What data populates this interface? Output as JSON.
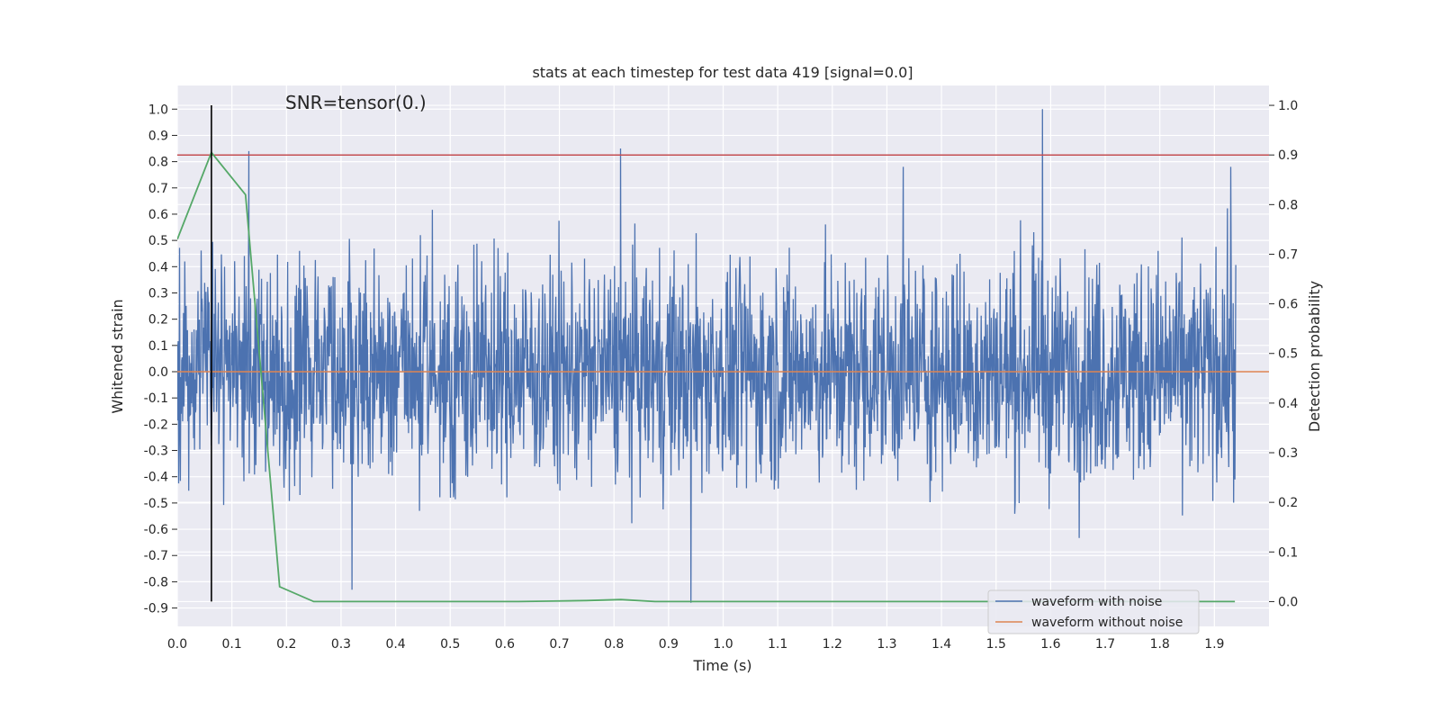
{
  "chart_data": {
    "type": "line",
    "title": "stats at each timestep for test data 419 [signal=0.0]",
    "xlabel": "Time (s)",
    "ylabel": "Whitened strain",
    "y2label": "Detection probability",
    "annotation": "SNR=tensor(0.)",
    "xlim": [
      0.0,
      2.0
    ],
    "ylim": [
      -0.97,
      1.09
    ],
    "y2lim": [
      -0.05,
      1.04
    ],
    "xticks": [
      "0.0",
      "0.1",
      "0.2",
      "0.3",
      "0.4",
      "0.5",
      "0.6",
      "0.7",
      "0.8",
      "0.9",
      "1.0",
      "1.1",
      "1.2",
      "1.3",
      "1.4",
      "1.5",
      "1.6",
      "1.7",
      "1.8",
      "1.9"
    ],
    "yticks": [
      "1.0",
      "0.9",
      "0.8",
      "0.7",
      "0.6",
      "0.5",
      "0.4",
      "0.3",
      "0.2",
      "0.1",
      "0.0",
      "-0.1",
      "-0.2",
      "-0.3",
      "-0.4",
      "-0.5",
      "-0.6",
      "-0.7",
      "-0.8",
      "-0.9"
    ],
    "y2ticks": [
      "1.0",
      "0.9",
      "0.8",
      "0.7",
      "0.6",
      "0.5",
      "0.4",
      "0.3",
      "0.2",
      "0.1",
      "0.0"
    ],
    "grid": true,
    "legend_position": "bottom-right",
    "colors": {
      "noisy": "#4c72b0",
      "clean": "#dd8452",
      "prob": "#55a868",
      "threshold": "#c44e52",
      "marker": "#000000",
      "background": "#eaeaf2"
    },
    "series": [
      {
        "name": "waveform with noise",
        "note": "dense noise trace of ~2000 samples; only the extreme spikes are legible",
        "spikes": [
          {
            "x": 0.131,
            "y": 0.84
          },
          {
            "x": 0.812,
            "y": 0.85
          },
          {
            "x": 1.585,
            "y": 1.0
          },
          {
            "x": 0.941,
            "y": -0.88
          },
          {
            "x": 0.32,
            "y": -0.83
          },
          {
            "x": 1.33,
            "y": 0.78
          },
          {
            "x": 1.93,
            "y": 0.78
          }
        ]
      },
      {
        "name": "waveform without noise",
        "x": [
          0.0,
          2.0
        ],
        "y": [
          0.0,
          0.0
        ]
      },
      {
        "name": "detection probability",
        "axis": "y2",
        "x": [
          0.0,
          0.0625,
          0.125,
          0.1875,
          0.25,
          0.3125,
          0.375,
          0.4375,
          0.5,
          0.5625,
          0.625,
          0.6875,
          0.75,
          0.8125,
          0.875,
          0.9375,
          1.0,
          1.25,
          1.5,
          1.75,
          1.9375
        ],
        "y": [
          0.73,
          0.905,
          0.82,
          0.03,
          0.0,
          0.0,
          0.0,
          0.0,
          0.0,
          0.0,
          0.0,
          0.001,
          0.002,
          0.004,
          0.0,
          0.0,
          0.0,
          0.0,
          0.0,
          0.0,
          0.0
        ]
      }
    ],
    "threshold_y2": 0.9,
    "marker_x": 0.0625,
    "marker_y2": [
      0.0,
      1.0
    ]
  }
}
